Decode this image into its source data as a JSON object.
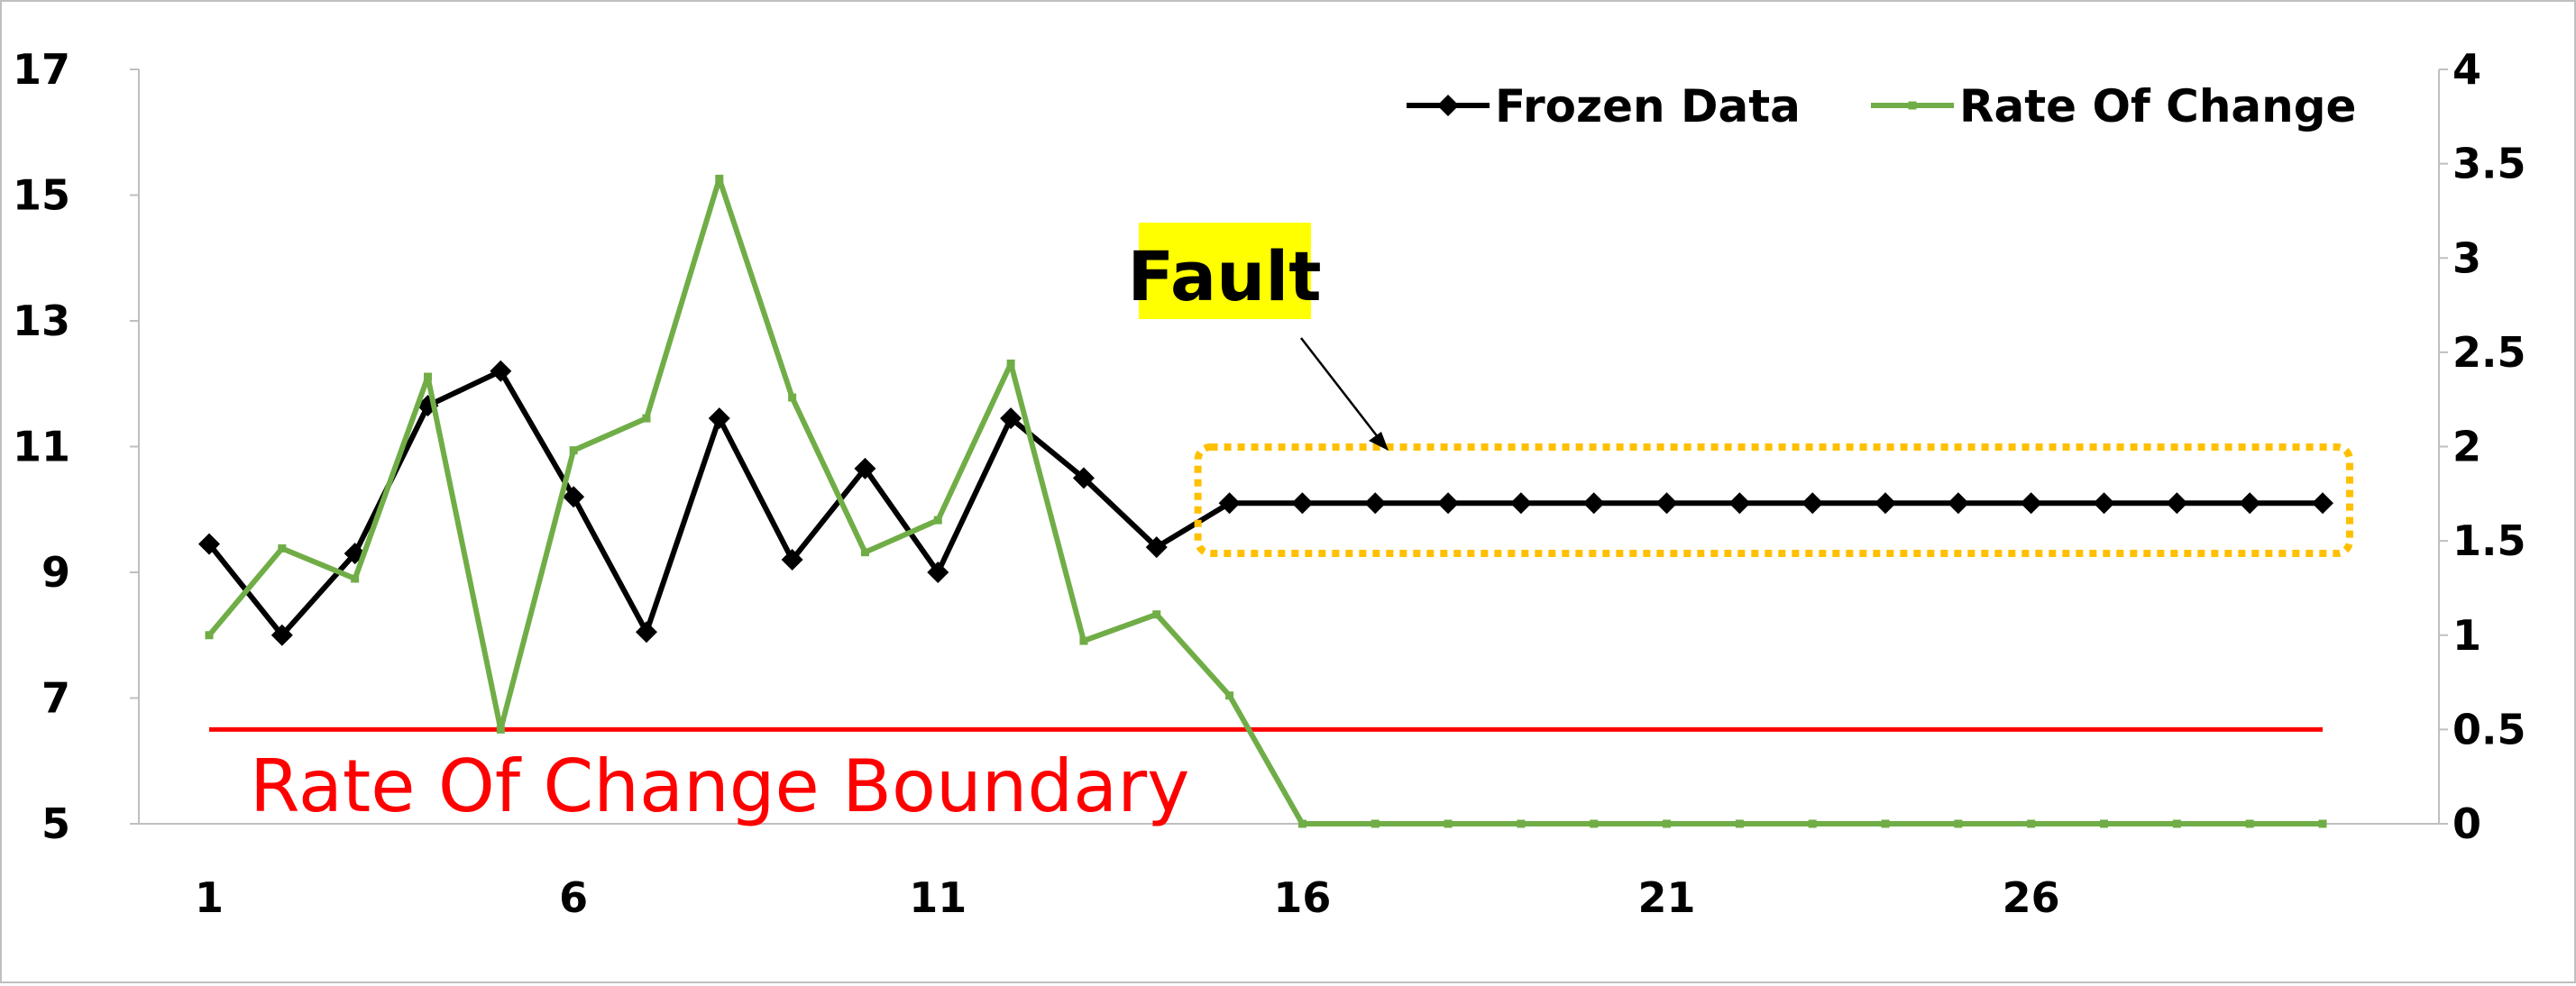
{
  "chart_data": {
    "type": "line",
    "x": [
      1,
      2,
      3,
      4,
      5,
      6,
      7,
      8,
      9,
      10,
      11,
      12,
      13,
      14,
      15,
      16,
      17,
      18,
      19,
      20,
      21,
      22,
      23,
      24,
      25,
      26,
      27,
      28,
      29,
      30
    ],
    "x_ticks": [
      1,
      6,
      11,
      16,
      21,
      26
    ],
    "xlim": [
      1,
      30
    ],
    "y_left": {
      "ylim": [
        5,
        17
      ],
      "ticks": [
        5,
        7,
        9,
        11,
        13,
        15,
        17
      ]
    },
    "y_right": {
      "ylim": [
        0,
        4
      ],
      "ticks": [
        "0",
        "0.5",
        "1",
        "1.5",
        "2",
        "2.5",
        "3",
        "3.5",
        "4"
      ]
    },
    "series": [
      {
        "name": "Frozen Data",
        "axis": "left",
        "color": "#000000",
        "marker": "diamond",
        "values": [
          9.45,
          8.0,
          9.3,
          11.65,
          12.2,
          10.2,
          8.05,
          11.45,
          9.2,
          10.65,
          9.0,
          11.45,
          10.5,
          9.4,
          10.1,
          10.1,
          10.1,
          10.1,
          10.1,
          10.1,
          10.1,
          10.1,
          10.1,
          10.1,
          10.1,
          10.1,
          10.1,
          10.1,
          10.1,
          10.1
        ]
      },
      {
        "name": "Rate Of Change",
        "axis": "right",
        "color": "#70ad47",
        "marker": "square",
        "values": [
          1.0,
          1.46,
          1.3,
          2.37,
          0.5,
          1.98,
          2.15,
          3.42,
          2.26,
          1.44,
          1.61,
          2.44,
          0.97,
          1.11,
          0.68,
          0,
          0,
          0,
          0,
          0,
          0,
          0,
          0,
          0,
          0,
          0,
          0,
          0,
          0,
          0
        ]
      }
    ],
    "boundary": {
      "axis": "right",
      "value": 0.5,
      "label": "Rate Of Change Boundary",
      "color": "#ff0000",
      "x_range": [
        1,
        30
      ]
    },
    "annotation": {
      "label": "Fault",
      "highlight_color": "#ffff00",
      "box_color": "#ffc000",
      "x_range": [
        15,
        30
      ]
    },
    "legend": "top-right",
    "grid": false,
    "title": "",
    "xlabel": "",
    "ylabel": ""
  }
}
